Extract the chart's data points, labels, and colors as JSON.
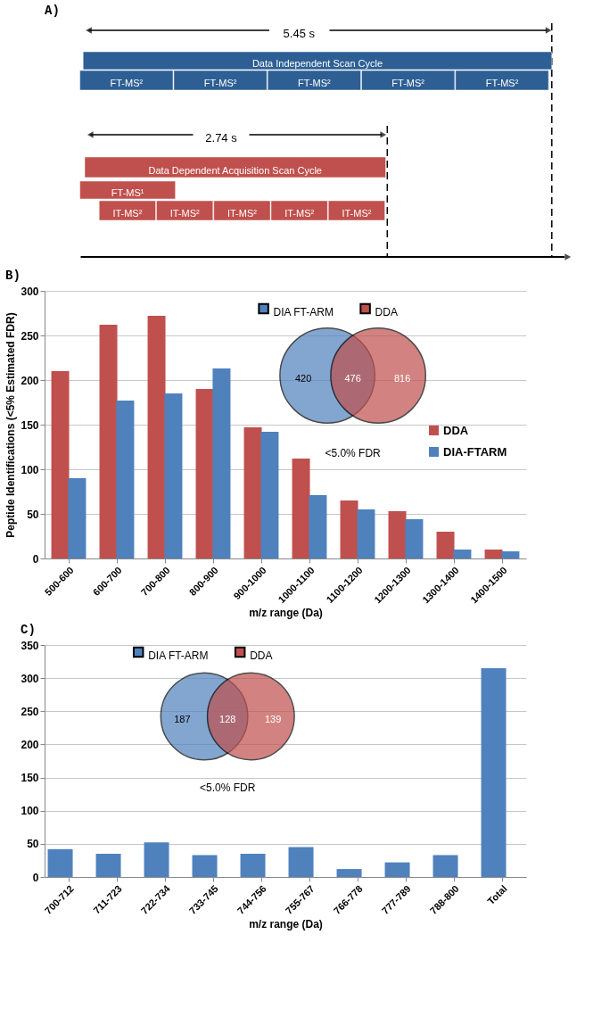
{
  "chart_data": [
    {
      "type": "other",
      "title": "A)",
      "colors": [
        "#2e5f94",
        "#c0504d"
      ],
      "annotations": [
        "5.45 s",
        "Data Independent Scan Cycle",
        "FT-MS²",
        "FT-MS²",
        "FT-MS²",
        "FT-MS²",
        "FT-MS²",
        "2.74 s",
        "Data Dependent Acquisition Scan Cycle",
        "FT-MS¹",
        "IT-MS²",
        "IT-MS²",
        "IT-MS²",
        "IT-MS²",
        "IT-MS²"
      ]
    },
    {
      "type": "bar",
      "title": "B)",
      "xlabel": "m/z  range (Da)",
      "ylabel": "Peptide Identifications (<5% Estimated FDR)",
      "categories": [
        "500-600",
        "600-700",
        "700-800",
        "800-900",
        "900-1000",
        "1000-1100",
        "1100-1200",
        "1200-1300",
        "1300-1400",
        "1400-1500"
      ],
      "series": [
        {
          "name": "DDA",
          "color": "#c0504d",
          "values": [
            210,
            262,
            272,
            190,
            147,
            112,
            65,
            53,
            30,
            10
          ]
        },
        {
          "name": "DIA-FTARM",
          "color": "#4f81bd",
          "values": [
            90,
            177,
            185,
            213,
            142,
            71,
            55,
            44,
            10,
            8
          ]
        }
      ],
      "ylim": [
        0,
        300
      ],
      "yticks": [
        0,
        50,
        100,
        150,
        200,
        250,
        300
      ],
      "grid": "y",
      "legend": "right",
      "annotations": [
        "DIA FT-ARM",
        "DDA",
        "420",
        "476",
        "816",
        "<5.0% FDR"
      ]
    },
    {
      "type": "bar",
      "title": "C)",
      "xlabel": "m/z range (Da)",
      "categories": [
        "700-712",
        "711-723",
        "722-734",
        "733-745",
        "744-756",
        "755-767",
        "766-778",
        "777-789",
        "788-800",
        "Total"
      ],
      "series": [
        {
          "color": "#4f81bd",
          "values": [
            42,
            35,
            52,
            33,
            35,
            45,
            12,
            22,
            33,
            315
          ]
        }
      ],
      "ylim": [
        0,
        350
      ],
      "yticks": [
        0,
        50,
        100,
        150,
        200,
        250,
        300,
        350
      ],
      "grid": "y",
      "annotations": [
        "DIA FT-ARM",
        "DDA",
        "187",
        "128",
        "139",
        "<5.0% FDR"
      ]
    }
  ]
}
